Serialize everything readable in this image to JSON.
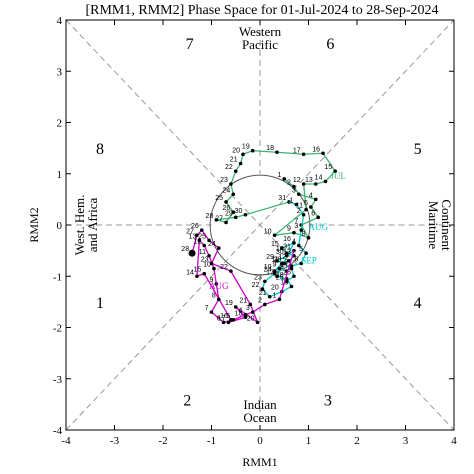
{
  "chart_data": {
    "type": "line",
    "title": "[RMM1, RMM2] Phase Space for 01-Jul-2024 to 28-Sep-2024",
    "xlabel": "RMM1",
    "ylabel": "RMM2",
    "xlim": [
      -4,
      4
    ],
    "ylim": [
      -4,
      4
    ],
    "xticks": [
      "-4",
      "-3",
      "-2",
      "-1",
      "0",
      "1",
      "2",
      "3",
      "4"
    ],
    "yticks": [
      "-4",
      "-3",
      "-2",
      "-1",
      "0",
      "1",
      "2",
      "3",
      "4"
    ],
    "unit_circle_radius": 1,
    "phase_numbers": [
      {
        "label": "1",
        "x": -3.3,
        "y": -1.5
      },
      {
        "label": "2",
        "x": -1.5,
        "y": -3.4
      },
      {
        "label": "3",
        "x": 1.4,
        "y": -3.4
      },
      {
        "label": "4",
        "x": 3.25,
        "y": -1.5
      },
      {
        "label": "5",
        "x": 3.25,
        "y": 1.5
      },
      {
        "label": "6",
        "x": 1.45,
        "y": 3.55
      },
      {
        "label": "7",
        "x": -1.45,
        "y": 3.55
      },
      {
        "label": "8",
        "x": -3.3,
        "y": 1.5
      }
    ],
    "region_labels": {
      "top": [
        "Western",
        "Pacific"
      ],
      "bottom": [
        "Indian",
        "Ocean"
      ],
      "left": [
        "West. Hem.",
        "and Africa"
      ],
      "right": [
        "Maritime",
        "Continent"
      ]
    },
    "series": [
      {
        "name": "JUL",
        "color": "#3cb371",
        "points": [
          {
            "d": "1",
            "x": 0.5,
            "y": 0.9
          },
          {
            "d": "2",
            "x": 0.7,
            "y": 0.75
          },
          {
            "d": "3",
            "x": 0.8,
            "y": 0.6
          },
          {
            "d": "4",
            "x": 1.15,
            "y": 0.5
          },
          {
            "d": "5",
            "x": 1.05,
            "y": 0.35
          },
          {
            "d": "6",
            "x": 1.2,
            "y": 0.15
          },
          {
            "d": "7",
            "x": 0.85,
            "y": 0.0
          },
          {
            "d": "8",
            "x": 1.0,
            "y": -0.25
          },
          {
            "d": "9",
            "x": 0.7,
            "y": -0.15
          },
          {
            "d": "10",
            "x": 0.3,
            "y": -0.2
          },
          {
            "d": "11",
            "x": 0.95,
            "y": 0.3
          },
          {
            "d": "12",
            "x": 0.9,
            "y": 0.8
          },
          {
            "d": "13",
            "x": 1.15,
            "y": 0.8
          },
          {
            "d": "14",
            "x": 1.35,
            "y": 0.85
          },
          {
            "d": "15",
            "x": 1.55,
            "y": 1.05
          },
          {
            "d": "16",
            "x": 1.3,
            "y": 1.4
          },
          {
            "d": "17",
            "x": 0.9,
            "y": 1.38
          },
          {
            "d": "18",
            "x": 0.35,
            "y": 1.42
          },
          {
            "d": "19",
            "x": -0.15,
            "y": 1.45
          },
          {
            "d": "20",
            "x": -0.35,
            "y": 1.38
          },
          {
            "d": "21",
            "x": -0.4,
            "y": 1.2
          },
          {
            "d": "22",
            "x": -0.5,
            "y": 1.05
          },
          {
            "d": "23",
            "x": -0.6,
            "y": 0.8
          },
          {
            "d": "24",
            "x": -0.55,
            "y": 0.6
          },
          {
            "d": "25",
            "x": -0.7,
            "y": 0.45
          },
          {
            "d": "26",
            "x": -0.55,
            "y": 0.25
          },
          {
            "d": "27",
            "x": -0.7,
            "y": 0.05
          },
          {
            "d": "28",
            "x": -0.9,
            "y": 0.1
          },
          {
            "d": "29",
            "x": -0.5,
            "y": 0.15
          },
          {
            "d": "30",
            "x": -0.3,
            "y": 0.2
          },
          {
            "d": "31",
            "x": 0.6,
            "y": 0.45
          }
        ]
      },
      {
        "name": "AUG",
        "color": "#00c8c8",
        "points": [
          {
            "d": "1",
            "x": 0.75,
            "y": 0.4
          },
          {
            "d": "2",
            "x": 0.9,
            "y": 0.2
          },
          {
            "d": "3",
            "x": 0.85,
            "y": -0.1
          },
          {
            "d": "4",
            "x": 0.8,
            "y": -0.4
          },
          {
            "d": "5",
            "x": 0.95,
            "y": -0.55
          },
          {
            "d": "6",
            "x": 0.85,
            "y": -0.75
          },
          {
            "d": "7",
            "x": 0.65,
            "y": -0.8
          },
          {
            "d": "8",
            "x": 0.55,
            "y": -0.9
          },
          {
            "d": "9",
            "x": 0.4,
            "y": -0.85
          },
          {
            "d": "10",
            "x": 0.3,
            "y": -0.9
          },
          {
            "d": "11",
            "x": 0.45,
            "y": -0.75
          },
          {
            "d": "12",
            "x": 0.6,
            "y": -0.7
          },
          {
            "d": "13",
            "x": 0.7,
            "y": -0.6
          },
          {
            "d": "14",
            "x": 0.55,
            "y": -0.55
          },
          {
            "d": "15",
            "x": 0.45,
            "y": -0.45
          },
          {
            "d": "16",
            "x": 0.7,
            "y": -0.35
          },
          {
            "d": "17",
            "x": 0.35,
            "y": -1.0
          },
          {
            "d": "18",
            "x": 0.55,
            "y": -1.05
          },
          {
            "d": "19",
            "x": 0.65,
            "y": -1.2
          },
          {
            "d": "20",
            "x": 0.45,
            "y": -1.3
          },
          {
            "d": "21",
            "x": 0.2,
            "y": -1.4
          },
          {
            "d": "22",
            "x": 0.05,
            "y": -1.25
          },
          {
            "d": "23",
            "x": 0.1,
            "y": -1.1
          },
          {
            "d": "24",
            "x": 0.3,
            "y": -0.95
          },
          {
            "d": "25",
            "x": 0.55,
            "y": -1.1
          },
          {
            "d": "26",
            "x": 0.7,
            "y": -1.0
          },
          {
            "d": "27",
            "x": 0.65,
            "y": -0.85
          },
          {
            "d": "28",
            "x": 0.5,
            "y": -0.75
          },
          {
            "d": "29",
            "x": 0.35,
            "y": -0.7
          },
          {
            "d": "30",
            "x": 0.55,
            "y": -0.6
          },
          {
            "d": "31",
            "x": 0.7,
            "y": -0.5
          }
        ]
      },
      {
        "name": "SEP",
        "color": "#cc00cc",
        "points": [
          {
            "d": "1",
            "x": 0.4,
            "y": -1.45
          },
          {
            "d": "2",
            "x": 0.1,
            "y": -1.55
          },
          {
            "d": "3",
            "x": -0.15,
            "y": -1.7
          },
          {
            "d": "4",
            "x": -0.3,
            "y": -1.75
          },
          {
            "d": "5",
            "x": -0.55,
            "y": -1.85
          },
          {
            "d": "6",
            "x": -0.75,
            "y": -1.9
          },
          {
            "d": "7",
            "x": -1.0,
            "y": -1.7
          },
          {
            "d": "8",
            "x": -0.85,
            "y": -1.45
          },
          {
            "d": "9",
            "x": -0.9,
            "y": -1.15
          },
          {
            "d": "10",
            "x": -0.95,
            "y": -0.85
          },
          {
            "d": "11",
            "x": -1.05,
            "y": -0.6
          },
          {
            "d": "12",
            "x": -1.15,
            "y": -0.4
          },
          {
            "d": "13",
            "x": -1.25,
            "y": -0.3
          },
          {
            "d": "14",
            "x": -1.3,
            "y": -1.0
          },
          {
            "d": "15",
            "x": -1.15,
            "y": -0.95
          },
          {
            "d": "16",
            "x": -0.6,
            "y": -1.85
          },
          {
            "d": "17",
            "x": -0.65,
            "y": -1.9
          },
          {
            "d": "18",
            "x": -0.3,
            "y": -1.8
          },
          {
            "d": "19",
            "x": -0.5,
            "y": -1.6
          },
          {
            "d": "20",
            "x": -0.05,
            "y": -1.9
          },
          {
            "d": "21",
            "x": -0.2,
            "y": -1.55
          },
          {
            "d": "22",
            "x": -0.6,
            "y": -0.9
          },
          {
            "d": "23",
            "x": -1.0,
            "y": -0.75
          },
          {
            "d": "24",
            "x": -0.85,
            "y": -0.45
          },
          {
            "d": "25",
            "x": -1.05,
            "y": -0.3
          },
          {
            "d": "26",
            "x": -1.2,
            "y": -0.1
          },
          {
            "d": "27",
            "x": -1.3,
            "y": -0.2
          },
          {
            "d": "28",
            "x": -1.4,
            "y": -0.55
          }
        ]
      }
    ],
    "month_labels": [
      {
        "text": "JUL",
        "x": 1.45,
        "y": 0.9,
        "color": "#3cb371"
      },
      {
        "text": "AUG",
        "x": 1.0,
        "y": -0.1,
        "color": "#00c8c8"
      },
      {
        "text": "SEP",
        "x": 0.85,
        "y": -0.75,
        "color": "#00c8c8"
      },
      {
        "text": "AUG",
        "x": -1.05,
        "y": -1.25,
        "color": "#cc00cc"
      }
    ]
  }
}
